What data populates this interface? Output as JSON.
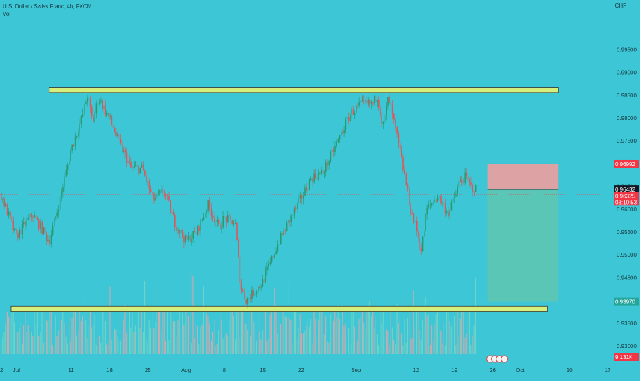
{
  "header": {
    "symbol_line": "U.S. Dollar / Swiss Franc, 4h, FXCM",
    "sub": "Vol",
    "currency": "CHF"
  },
  "colors": {
    "background": "#3cc6d6",
    "up": "#2a9a72",
    "down": "#e05656",
    "zone_fill": "#d6ee7c",
    "stop_zone": "#e6a0a0",
    "target_zone": "#5cc7b4",
    "label_red": "#f23645",
    "label_dark": "#131722",
    "label_green": "#26a69a"
  },
  "price_labels": {
    "stop": "0.96992",
    "entry": "0.96432",
    "current": "0.96325",
    "countdown": "03:10:53",
    "target": "0.93970",
    "volume": "9.131K"
  },
  "chart_data": {
    "type": "candlestick",
    "y_range": [
      0.9282,
      1.0035
    ],
    "y_ticks": [
      0.93,
      0.935,
      0.94,
      0.945,
      0.95,
      0.955,
      0.96,
      0.965,
      0.97,
      0.975,
      0.98,
      0.985,
      0.99,
      0.995
    ],
    "y_tick_labels": [
      "0.93000",
      "0.93500",
      "0.94000",
      "0.94500",
      "0.95000",
      "0.95500",
      "0.96000",
      "0.96500",
      "0.97000",
      "0.97500",
      "0.98000",
      "0.98500",
      "0.99000",
      "0.99500"
    ],
    "x_labels": [
      "2",
      "Jul",
      "11",
      "18",
      "25",
      "Aug",
      "8",
      "15",
      "22",
      "Sep",
      "12",
      "19",
      "26",
      "Oct",
      "10",
      "17"
    ],
    "x_start": "2021-06-28",
    "x_end": "2021-10-17",
    "close_path": [
      [
        "2021-06-28",
        0.964
      ],
      [
        "2021-07-01",
        0.954
      ],
      [
        "2021-07-04",
        0.959
      ],
      [
        "2021-07-07",
        0.953
      ],
      [
        "2021-07-09",
        0.962
      ],
      [
        "2021-07-11",
        0.973
      ],
      [
        "2021-07-13",
        0.98
      ],
      [
        "2021-07-14",
        0.985
      ],
      [
        "2021-07-15",
        0.979
      ],
      [
        "2021-07-16",
        0.9845
      ],
      [
        "2021-07-18",
        0.98
      ],
      [
        "2021-07-20",
        0.974
      ],
      [
        "2021-07-22",
        0.969
      ],
      [
        "2021-07-24",
        0.969
      ],
      [
        "2021-07-26",
        0.962
      ],
      [
        "2021-07-28",
        0.964
      ],
      [
        "2021-07-30",
        0.957
      ],
      [
        "2021-08-01",
        0.953
      ],
      [
        "2021-08-03",
        0.955
      ],
      [
        "2021-08-05",
        0.961
      ],
      [
        "2021-08-07",
        0.956
      ],
      [
        "2021-08-08",
        0.958
      ],
      [
        "2021-08-10",
        0.957
      ],
      [
        "2021-08-11",
        0.943
      ],
      [
        "2021-08-12",
        0.94
      ],
      [
        "2021-08-15",
        0.944
      ],
      [
        "2021-08-18",
        0.953
      ],
      [
        "2021-08-21",
        0.96
      ],
      [
        "2021-08-24",
        0.967
      ],
      [
        "2021-08-26",
        0.968
      ],
      [
        "2021-08-28",
        0.973
      ],
      [
        "2021-08-31",
        0.981
      ],
      [
        "2021-09-02",
        0.983
      ],
      [
        "2021-09-04",
        0.983
      ],
      [
        "2021-09-05",
        0.985
      ],
      [
        "2021-09-06",
        0.978
      ],
      [
        "2021-09-07",
        0.9845
      ],
      [
        "2021-09-08",
        0.979
      ],
      [
        "2021-09-10",
        0.967
      ],
      [
        "2021-09-11",
        0.96
      ],
      [
        "2021-09-12",
        0.956
      ],
      [
        "2021-09-13",
        0.951
      ],
      [
        "2021-09-14",
        0.96
      ],
      [
        "2021-09-16",
        0.963
      ],
      [
        "2021-09-18",
        0.959
      ],
      [
        "2021-09-20",
        0.966
      ],
      [
        "2021-09-21",
        0.967
      ],
      [
        "2021-09-22",
        0.965
      ],
      [
        "2021-09-23",
        0.9643
      ]
    ],
    "resistance_zone": {
      "y_top": 0.9867,
      "y_bottom": 0.9856,
      "x_from": "2021-07-07",
      "x_to": "2021-10-08"
    },
    "support_zone": {
      "y_top": 0.9387,
      "y_bottom": 0.9376,
      "x_from": "2021-06-30",
      "x_to": "2021-10-06"
    },
    "position": {
      "type": "short",
      "entry": 0.96432,
      "stop": 0.96992,
      "target": 0.9397,
      "x_from": "2021-09-25",
      "x_to": "2021-10-08"
    },
    "grid": false
  }
}
